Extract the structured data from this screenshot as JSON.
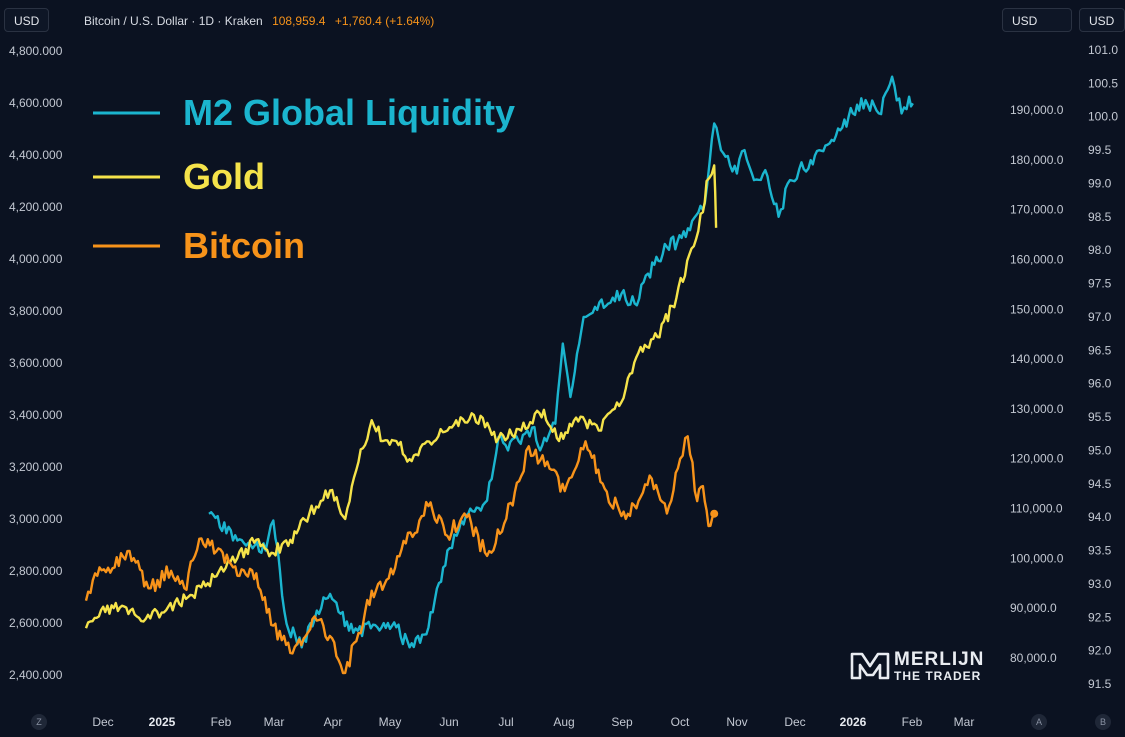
{
  "header": {
    "currency_left": "USD",
    "currency_right_1": "USD",
    "currency_right_2": "USD",
    "symbol_line": "Bitcoin / U.S. Dollar · 1D · Kraken",
    "last_price": "108,959.4",
    "change": "+1,760.4 (+1.64%)"
  },
  "corners": {
    "left": "Z",
    "right_1": "A",
    "right_2": "B"
  },
  "watermark": {
    "line1": "MERLIJN",
    "line2": "THE TRADER"
  },
  "colors": {
    "background": "#0b1221",
    "m2": "#1bb5cf",
    "gold": "#f5e34a",
    "bitcoin": "#f7931a"
  },
  "chart_data": {
    "type": "line",
    "title": "",
    "legend": [
      "M2 Global Liquidity",
      "Gold",
      "Bitcoin"
    ],
    "legend_placement": "top-left",
    "grid": false,
    "x_labels": [
      "Dec",
      "2025",
      "Feb",
      "Mar",
      "Apr",
      "May",
      "Jun",
      "Jul",
      "Aug",
      "Sep",
      "Oct",
      "Nov",
      "Dec",
      "2026",
      "Feb",
      "Mar"
    ],
    "axes": {
      "left": {
        "series": "Gold",
        "ticks": [
          "4,800.000",
          "4,600.000",
          "4,400.000",
          "4,200.000",
          "4,000.000",
          "3,800.000",
          "3,600.000",
          "3,400.000",
          "3,200.000",
          "3,000.000",
          "2,800.000",
          "2,600.000",
          "2,400.000"
        ],
        "range": [
          2400,
          4800
        ]
      },
      "right_1": {
        "series": "Bitcoin",
        "ticks": [
          "190,000.0",
          "180,000.0",
          "170,000.0",
          "160,000.0",
          "150,000.0",
          "140,000.0",
          "130,000.0",
          "120,000.0",
          "110,000.0",
          "100,000.0",
          "90,000.0",
          "80,000.0"
        ],
        "range": [
          80000,
          190000
        ]
      },
      "right_2": {
        "series": "M2 Global Liquidity",
        "ticks": [
          "101.0",
          "100.5",
          "100.0",
          "99.5",
          "99.0",
          "98.5",
          "98.0",
          "97.5",
          "97.0",
          "96.5",
          "96.0",
          "95.5",
          "95.0",
          "94.5",
          "94.0",
          "93.5",
          "93.0",
          "92.5",
          "92.0",
          "91.5"
        ],
        "range": [
          91.5,
          101.0
        ]
      }
    },
    "series": [
      {
        "name": "M2 Global Liquidity",
        "axis": "right_2",
        "points": [
          [
            "2025-01-26",
            94.05
          ],
          [
            "2025-02-10",
            93.65
          ],
          [
            "2025-02-25",
            93.5
          ],
          [
            "2025-03-01",
            93.95
          ],
          [
            "2025-03-08",
            92.4
          ],
          [
            "2025-03-16",
            92.05
          ],
          [
            "2025-03-24",
            92.6
          ],
          [
            "2025-03-31",
            92.85
          ],
          [
            "2025-04-10",
            92.3
          ],
          [
            "2025-04-25",
            92.35
          ],
          [
            "2025-05-05",
            92.35
          ],
          [
            "2025-05-12",
            92.05
          ],
          [
            "2025-05-22",
            92.35
          ],
          [
            "2025-06-01",
            93.5
          ],
          [
            "2025-06-12",
            94.05
          ],
          [
            "2025-06-22",
            94.25
          ],
          [
            "2025-06-28",
            95.2
          ],
          [
            "2025-07-03",
            95.0
          ],
          [
            "2025-07-12",
            95.25
          ],
          [
            "2025-07-17",
            95.35
          ],
          [
            "2025-07-20",
            95.0
          ],
          [
            "2025-07-28",
            95.4
          ],
          [
            "2025-08-01",
            96.6
          ],
          [
            "2025-08-05",
            95.8
          ],
          [
            "2025-08-12",
            97.0
          ],
          [
            "2025-08-18",
            97.15
          ],
          [
            "2025-08-25",
            97.2
          ],
          [
            "2025-09-01",
            97.35
          ],
          [
            "2025-09-08",
            97.2
          ],
          [
            "2025-09-15",
            97.65
          ],
          [
            "2025-09-25",
            98.05
          ],
          [
            "2025-10-05",
            98.2
          ],
          [
            "2025-10-15",
            98.7
          ],
          [
            "2025-10-20",
            99.9
          ],
          [
            "2025-10-26",
            99.4
          ],
          [
            "2025-11-01",
            99.15
          ],
          [
            "2025-11-05",
            99.5
          ],
          [
            "2025-11-10",
            99.05
          ],
          [
            "2025-11-16",
            99.2
          ],
          [
            "2025-11-23",
            98.5
          ],
          [
            "2025-11-29",
            99.05
          ],
          [
            "2025-12-10",
            99.35
          ],
          [
            "2025-12-20",
            99.6
          ],
          [
            "2025-12-30",
            100.0
          ],
          [
            "2026-01-08",
            100.25
          ],
          [
            "2026-01-15",
            100.05
          ],
          [
            "2026-01-22",
            100.6
          ],
          [
            "2026-01-27",
            100.05
          ],
          [
            "2026-01-31",
            100.3
          ],
          [
            "2026-02-02",
            100.2
          ]
        ]
      },
      {
        "name": "Gold",
        "axis": "left",
        "points": [
          [
            "2024-11-22",
            2580
          ],
          [
            "2024-11-30",
            2650
          ],
          [
            "2024-12-10",
            2660
          ],
          [
            "2024-12-20",
            2620
          ],
          [
            "2025-01-01",
            2640
          ],
          [
            "2025-01-15",
            2700
          ],
          [
            "2025-01-30",
            2780
          ],
          [
            "2025-02-10",
            2850
          ],
          [
            "2025-02-20",
            2920
          ],
          [
            "2025-02-28",
            2870
          ],
          [
            "2025-03-10",
            2920
          ],
          [
            "2025-03-20",
            3020
          ],
          [
            "2025-03-31",
            3110
          ],
          [
            "2025-04-08",
            3000
          ],
          [
            "2025-04-15",
            3220
          ],
          [
            "2025-04-22",
            3380
          ],
          [
            "2025-04-28",
            3300
          ],
          [
            "2025-05-05",
            3300
          ],
          [
            "2025-05-12",
            3230
          ],
          [
            "2025-05-20",
            3290
          ],
          [
            "2025-06-01",
            3340
          ],
          [
            "2025-06-15",
            3400
          ],
          [
            "2025-06-28",
            3310
          ],
          [
            "2025-07-10",
            3340
          ],
          [
            "2025-07-22",
            3420
          ],
          [
            "2025-07-30",
            3300
          ],
          [
            "2025-08-08",
            3390
          ],
          [
            "2025-08-20",
            3340
          ],
          [
            "2025-09-01",
            3450
          ],
          [
            "2025-09-10",
            3640
          ],
          [
            "2025-09-20",
            3700
          ],
          [
            "2025-09-30",
            3850
          ],
          [
            "2025-10-08",
            4040
          ],
          [
            "2025-10-14",
            4180
          ],
          [
            "2025-10-16",
            4300
          ],
          [
            "2025-10-20",
            4360
          ],
          [
            "2025-10-21",
            4120
          ]
        ]
      },
      {
        "name": "Bitcoin",
        "axis": "right_1",
        "points": [
          [
            "2024-11-22",
            91500
          ],
          [
            "2024-11-28",
            96500
          ],
          [
            "2024-12-06",
            98000
          ],
          [
            "2024-12-15",
            101500
          ],
          [
            "2024-12-25",
            94000
          ],
          [
            "2025-01-06",
            97500
          ],
          [
            "2025-01-13",
            94000
          ],
          [
            "2025-01-22",
            104000
          ],
          [
            "2025-01-31",
            102000
          ],
          [
            "2025-02-10",
            96500
          ],
          [
            "2025-02-20",
            97000
          ],
          [
            "2025-03-01",
            86500
          ],
          [
            "2025-03-10",
            81000
          ],
          [
            "2025-03-24",
            87500
          ],
          [
            "2025-04-01",
            84000
          ],
          [
            "2025-04-08",
            77000
          ],
          [
            "2025-04-15",
            85000
          ],
          [
            "2025-04-22",
            93500
          ],
          [
            "2025-05-01",
            96000
          ],
          [
            "2025-05-10",
            103000
          ],
          [
            "2025-05-22",
            110500
          ],
          [
            "2025-06-01",
            104500
          ],
          [
            "2025-06-10",
            109000
          ],
          [
            "2025-06-22",
            100500
          ],
          [
            "2025-07-01",
            107000
          ],
          [
            "2025-07-10",
            116500
          ],
          [
            "2025-07-14",
            122500
          ],
          [
            "2025-07-25",
            118000
          ],
          [
            "2025-08-02",
            113500
          ],
          [
            "2025-08-13",
            123500
          ],
          [
            "2025-08-22",
            115000
          ],
          [
            "2025-09-01",
            108500
          ],
          [
            "2025-09-10",
            111500
          ],
          [
            "2025-09-17",
            116000
          ],
          [
            "2025-09-25",
            109000
          ],
          [
            "2025-10-02",
            120000
          ],
          [
            "2025-10-06",
            124500
          ],
          [
            "2025-10-11",
            111500
          ],
          [
            "2025-10-14",
            114500
          ],
          [
            "2025-10-17",
            106500
          ],
          [
            "2025-10-20",
            108959.4
          ]
        ]
      }
    ]
  }
}
